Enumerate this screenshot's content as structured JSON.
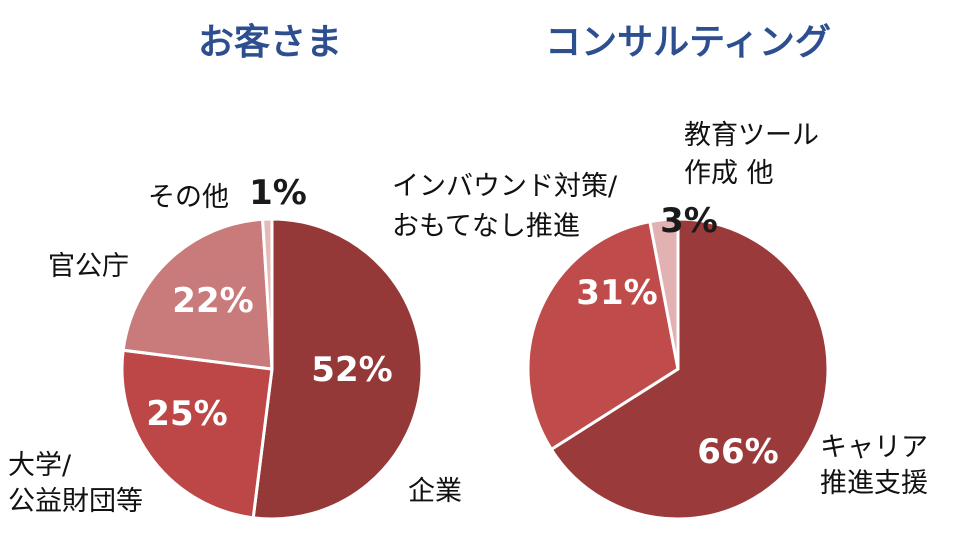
{
  "chart_data": [
    {
      "type": "pie",
      "title": "お客さま",
      "slices": [
        {
          "label": "企業",
          "value": 52,
          "display": "52%",
          "color": "#953838"
        },
        {
          "label": "大学/\n公益財団等",
          "value": 25,
          "display": "25%",
          "color": "#bd4747"
        },
        {
          "label": "官公庁",
          "value": 22,
          "display": "22%",
          "color": "#c97a7a"
        },
        {
          "label": "その他",
          "value": 1,
          "display": "1%",
          "color": "#e6b8b8"
        }
      ]
    },
    {
      "type": "pie",
      "title": "コンサルティング",
      "slices": [
        {
          "label": "キャリア\n推進支援",
          "value": 66,
          "display": "66%",
          "color": "#9b3a3a"
        },
        {
          "label": "インバウンド対策/\nおもてなし推進",
          "value": 31,
          "display": "31%",
          "color": "#c04b4b"
        },
        {
          "label": "教育ツール\n作成 他",
          "value": 3,
          "display": "3%",
          "color": "#e2b1b1"
        }
      ]
    }
  ]
}
